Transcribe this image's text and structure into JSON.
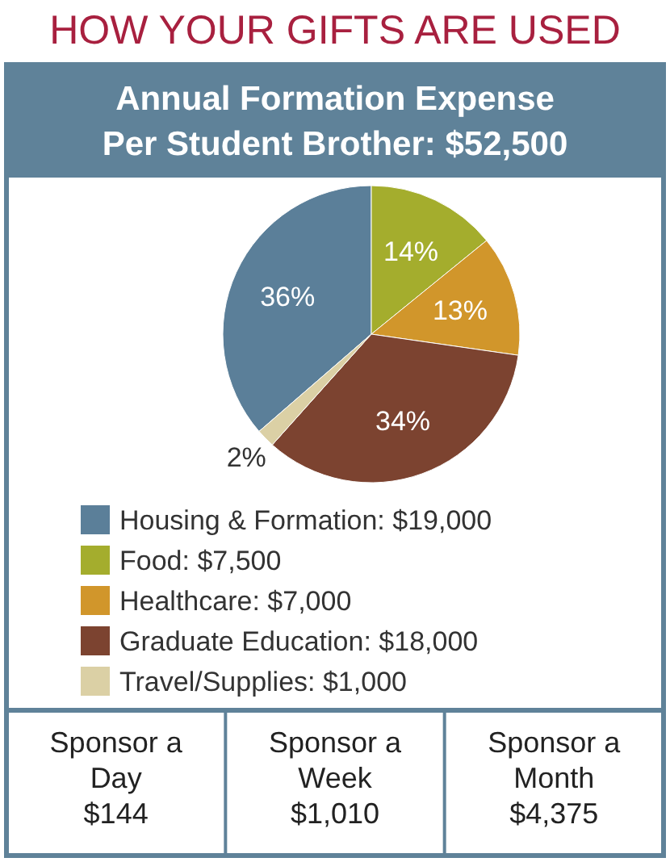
{
  "chart_data": {
    "type": "pie",
    "title": "HOW YOUR GIFTS ARE USED",
    "subtitle": "Annual Formation Expense\nPer Student Brother: $52,500",
    "categories": [
      "Housing & Formation: $19,000",
      "Food: $7,500",
      "Healthcare: $7,000",
      "Graduate Education: $18,000",
      "Travel/Supplies: $1,000"
    ],
    "values": [
      36,
      14,
      13,
      34,
      2
    ],
    "value_labels": [
      "36%",
      "14%",
      "13%",
      "34%",
      "2%"
    ],
    "colors": [
      "#5b7f99",
      "#a4ad2d",
      "#d1962b",
      "#7c4330",
      "#dbd0a5"
    ],
    "legend": "bottom",
    "annotations": [
      "Sponsor a\nDay\n$144",
      "Sponsor a\nWeek\n$1,010",
      "Sponsor a\nMonth\n$4,375"
    ]
  }
}
